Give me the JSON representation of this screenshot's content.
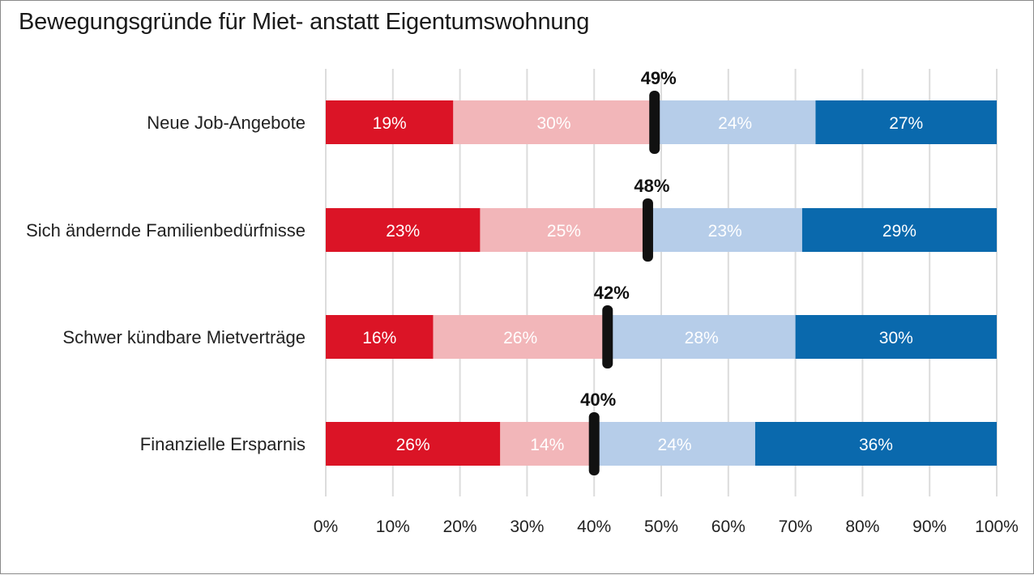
{
  "colors": {
    "strong_red": "#db1426",
    "light_red": "#f2b6b9",
    "light_blue": "#b6cde9",
    "strong_blue": "#0a69ad",
    "marker": "#111111",
    "grid": "#dcdcdc"
  },
  "chart_data": {
    "type": "bar",
    "orientation": "horizontal",
    "stacked": true,
    "title": "Bewegungsgründe für Miet- anstatt Eigentumswohnung",
    "categories": [
      "Neue Job-Angebote",
      "Sich ändernde Familienbedürfnisse",
      "Schwer kündbare Mietverträge",
      "Finanzielle Ersparnis"
    ],
    "series": [
      {
        "color": "#db1426",
        "values": [
          19,
          23,
          16,
          26
        ],
        "labels": [
          "19%",
          "23%",
          "16%",
          "26%"
        ]
      },
      {
        "color": "#f2b6b9",
        "values": [
          30,
          25,
          26,
          14
        ],
        "labels": [
          "30%",
          "25%",
          "26%",
          "14%"
        ]
      },
      {
        "color": "#b6cde9",
        "values": [
          24,
          23,
          28,
          24
        ],
        "labels": [
          "24%",
          "23%",
          "28%",
          "24%"
        ]
      },
      {
        "color": "#0a69ad",
        "values": [
          27,
          29,
          30,
          36
        ],
        "labels": [
          "27%",
          "29%",
          "30%",
          "36%"
        ]
      }
    ],
    "markers": {
      "values": [
        49,
        48,
        42,
        40
      ],
      "labels": [
        "49%",
        "48%",
        "42%",
        "40%"
      ]
    },
    "xlim": [
      0,
      100
    ],
    "xticks": [
      0,
      10,
      20,
      30,
      40,
      50,
      60,
      70,
      80,
      90,
      100
    ],
    "xtick_labels": [
      "0%",
      "10%",
      "20%",
      "30%",
      "40%",
      "50%",
      "60%",
      "70%",
      "80%",
      "90%",
      "100%"
    ],
    "grid": true,
    "legend": "none"
  }
}
